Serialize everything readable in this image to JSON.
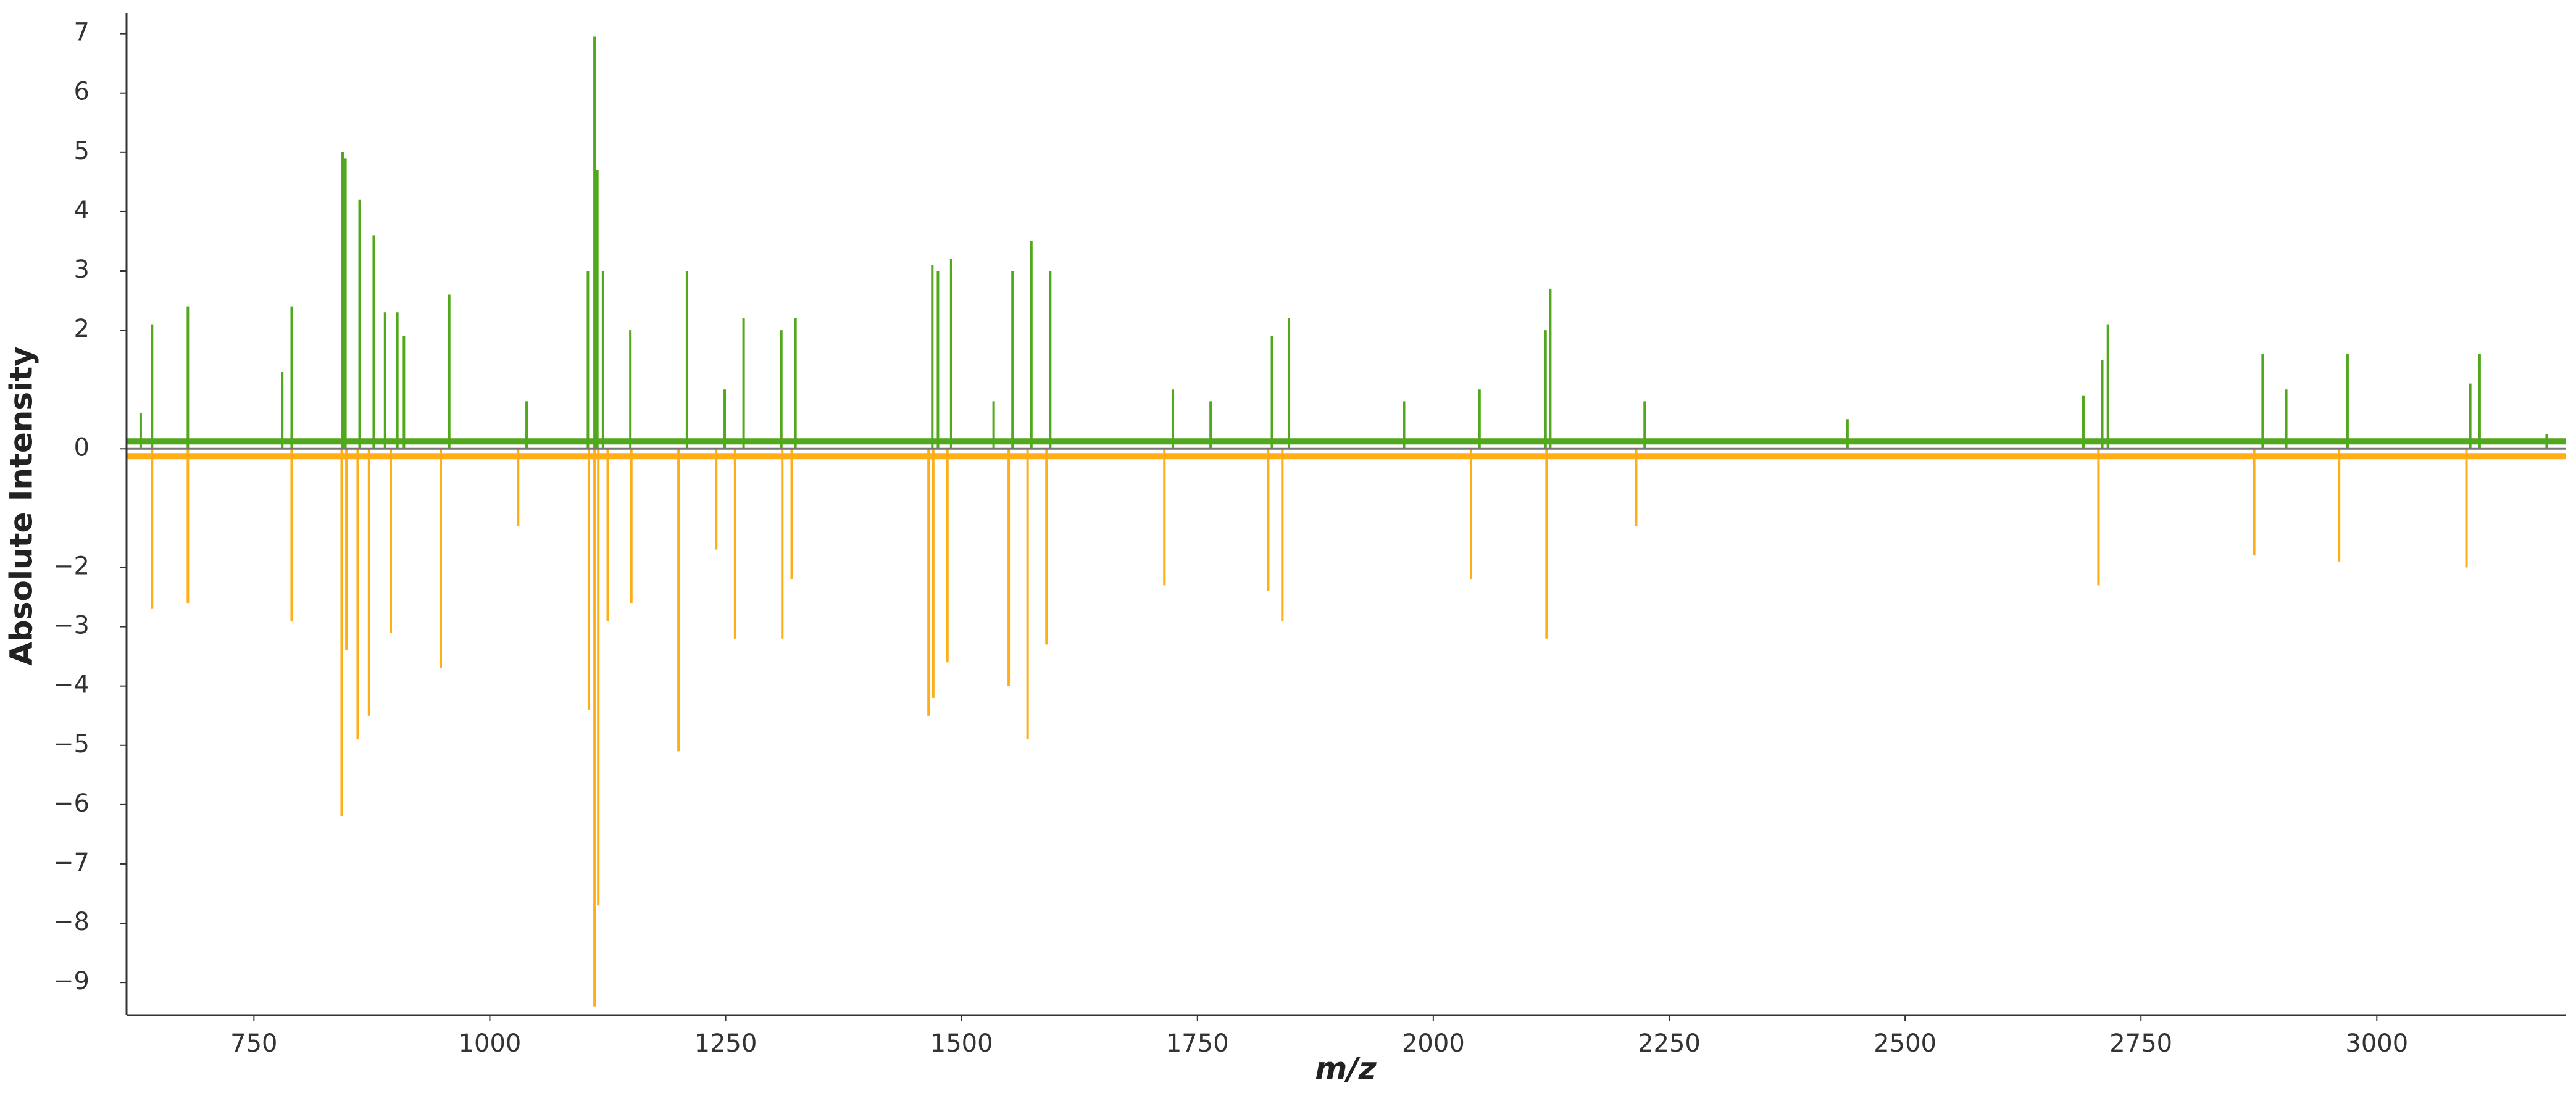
{
  "chart_data": {
    "type": "mirror-spectrum",
    "xlabel": "m/z",
    "ylabel": "Absolute Intensity",
    "xlim": [
      615,
      3200
    ],
    "ylim": [
      -9.55,
      7.35
    ],
    "xticks": [
      750,
      1000,
      1250,
      1500,
      1750,
      2000,
      2250,
      2500,
      2750,
      3000
    ],
    "yticks": [
      {
        "value": -9,
        "label": "−9"
      },
      {
        "value": -8,
        "label": "−8"
      },
      {
        "value": -7,
        "label": "−7"
      },
      {
        "value": -6,
        "label": "−6"
      },
      {
        "value": -5,
        "label": "−5"
      },
      {
        "value": -4,
        "label": "−4"
      },
      {
        "value": -3,
        "label": "−3"
      },
      {
        "value": -2,
        "label": "−2"
      },
      0,
      2,
      3,
      4,
      5,
      6,
      7
    ],
    "series": [
      {
        "color": "#52a81c",
        "x": [
          630,
          642,
          680,
          780,
          790,
          844,
          847,
          862,
          877,
          889,
          902,
          909,
          957,
          1039,
          1104,
          1111,
          1114,
          1120,
          1149,
          1209,
          1249,
          1269,
          1309,
          1324,
          1469,
          1475,
          1489,
          1534,
          1554,
          1574,
          1594,
          1724,
          1764,
          1829,
          1847,
          1969,
          2049,
          2119,
          2124,
          2224,
          2439,
          2689,
          2709,
          2715,
          2879,
          2904,
          2969,
          3099,
          3109,
          3180
        ],
        "values": [
          0.6,
          2.1,
          2.4,
          1.3,
          2.4,
          5.0,
          4.9,
          4.2,
          3.6,
          2.3,
          2.3,
          1.9,
          2.6,
          0.8,
          3.0,
          6.95,
          4.7,
          3.0,
          2.0,
          3.0,
          1.0,
          2.2,
          2.0,
          2.2,
          3.1,
          3.0,
          3.2,
          0.8,
          3.0,
          3.5,
          3.0,
          1.0,
          0.8,
          1.9,
          2.2,
          0.8,
          1.0,
          2.0,
          2.7,
          0.8,
          0.5,
          0.9,
          1.5,
          2.1,
          1.6,
          1.0,
          1.6,
          1.1,
          1.6,
          0.25
        ]
      },
      {
        "color": "#ffae17",
        "x": [
          642,
          680,
          790,
          843,
          848,
          860,
          872,
          895,
          948,
          1030,
          1105,
          1111,
          1115,
          1125,
          1150,
          1200,
          1240,
          1260,
          1310,
          1320,
          1465,
          1470,
          1485,
          1550,
          1570,
          1590,
          1715,
          1825,
          1840,
          2040,
          2120,
          2215,
          2705,
          2870,
          2960,
          3095
        ],
        "values": [
          -2.7,
          -2.6,
          -2.9,
          -6.2,
          -3.4,
          -4.9,
          -4.5,
          -3.1,
          -3.7,
          -1.3,
          -4.4,
          -9.4,
          -7.7,
          -2.9,
          -2.6,
          -5.1,
          -1.7,
          -3.2,
          -3.2,
          -2.2,
          -4.5,
          -4.2,
          -3.6,
          -4.0,
          -4.9,
          -3.3,
          -2.3,
          -2.4,
          -2.9,
          -2.2,
          -3.2,
          -1.3,
          -2.3,
          -1.8,
          -1.9,
          -2.0
        ]
      }
    ]
  }
}
